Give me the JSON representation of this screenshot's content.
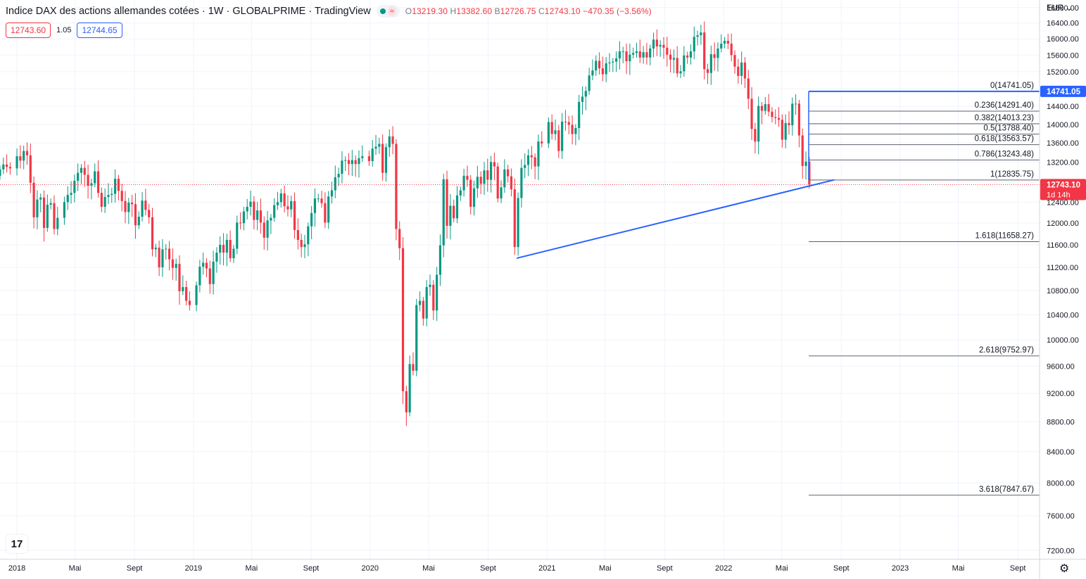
{
  "header": {
    "title": "Indice DAX des actions allemandes cotées · 1W · GLOBALPRIME · TradingView",
    "status_dot_color": "#089981",
    "ohlc": {
      "o_label": "O",
      "o": "13219.30",
      "h_label": "H",
      "h": "13382.60",
      "l_label": "B",
      "l": "12726.75",
      "c_label": "C",
      "c": "12743.10",
      "change": "−470.35 (−3.56%)"
    }
  },
  "quote": {
    "sell": "12743.60",
    "spread": "1.05",
    "buy": "12744.65"
  },
  "currency": "EUR",
  "currency_icon": "chevron-down-icon",
  "colors": {
    "up": "#089981",
    "down": "#f23645",
    "accent": "#2962ff",
    "fib": "#5d606b",
    "grid": "#f0f3fa"
  },
  "chart_data": {
    "type": "candlestick",
    "interval": "1W",
    "y_scale": "log",
    "ylim": [
      7100,
      17000
    ],
    "y_ticks": [
      "16800.00",
      "16400.00",
      "16000.00",
      "15600.00",
      "15200.00",
      "14800.00",
      "14400.00",
      "14000.00",
      "13600.00",
      "13200.00",
      "12800.00",
      "12400.00",
      "12000.00",
      "11600.00",
      "11200.00",
      "10800.00",
      "10400.00",
      "10000.00",
      "9600.00",
      "9200.00",
      "8800.00",
      "8400.00",
      "8000.00",
      "7600.00",
      "7200.00"
    ],
    "x_range": [
      "2017-11-27",
      "2023-10-16"
    ],
    "x_ticks": [
      {
        "date": "2018-01-01",
        "label": "2018"
      },
      {
        "date": "2018-05-01",
        "label": "Mai"
      },
      {
        "date": "2018-09-01",
        "label": "Sept"
      },
      {
        "date": "2019-01-01",
        "label": "2019"
      },
      {
        "date": "2019-05-01",
        "label": "Mai"
      },
      {
        "date": "2019-09-01",
        "label": "Sept"
      },
      {
        "date": "2020-01-01",
        "label": "2020"
      },
      {
        "date": "2020-05-01",
        "label": "Mai"
      },
      {
        "date": "2020-09-01",
        "label": "Sept"
      },
      {
        "date": "2021-01-01",
        "label": "2021"
      },
      {
        "date": "2021-05-01",
        "label": "Mai"
      },
      {
        "date": "2021-09-01",
        "label": "Sept"
      },
      {
        "date": "2022-01-01",
        "label": "2022"
      },
      {
        "date": "2022-05-01",
        "label": "Mai"
      },
      {
        "date": "2022-09-01",
        "label": "Sept"
      },
      {
        "date": "2023-01-01",
        "label": "2023"
      },
      {
        "date": "2023-05-01",
        "label": "Mai"
      },
      {
        "date": "2023-09-01",
        "label": "Sept"
      }
    ],
    "weekly_closes": [
      [
        "2017-11-27",
        13050
      ],
      [
        "2017-12-04",
        13150
      ],
      [
        "2017-12-11",
        13100
      ],
      [
        "2017-12-18",
        13070
      ],
      [
        "2018-01-01",
        13320
      ],
      [
        "2018-01-08",
        13230
      ],
      [
        "2018-01-15",
        13430
      ],
      [
        "2018-01-22",
        13340
      ],
      [
        "2018-01-29",
        12780
      ],
      [
        "2018-02-05",
        12110
      ],
      [
        "2018-02-12",
        12450
      ],
      [
        "2018-02-19",
        12490
      ],
      [
        "2018-02-26",
        11910
      ],
      [
        "2018-03-05",
        12350
      ],
      [
        "2018-03-12",
        12380
      ],
      [
        "2018-03-19",
        11890
      ],
      [
        "2018-03-26",
        12100
      ],
      [
        "2018-04-09",
        12400
      ],
      [
        "2018-04-16",
        12540
      ],
      [
        "2018-04-23",
        12580
      ],
      [
        "2018-04-30",
        12820
      ],
      [
        "2018-05-07",
        12980
      ],
      [
        "2018-05-14",
        13080
      ],
      [
        "2018-05-21",
        12940
      ],
      [
        "2018-05-28",
        12720
      ],
      [
        "2018-06-04",
        12770
      ],
      [
        "2018-06-11",
        13010
      ],
      [
        "2018-06-18",
        12580
      ],
      [
        "2018-06-25",
        12310
      ],
      [
        "2018-07-02",
        12500
      ],
      [
        "2018-07-09",
        12540
      ],
      [
        "2018-07-16",
        12560
      ],
      [
        "2018-07-23",
        12860
      ],
      [
        "2018-07-30",
        12620
      ],
      [
        "2018-08-06",
        12420
      ],
      [
        "2018-08-13",
        12210
      ],
      [
        "2018-08-20",
        12390
      ],
      [
        "2018-08-27",
        12360
      ],
      [
        "2018-09-03",
        11960
      ],
      [
        "2018-09-10",
        12120
      ],
      [
        "2018-09-17",
        12430
      ],
      [
        "2018-09-24",
        12250
      ],
      [
        "2018-10-01",
        12110
      ],
      [
        "2018-10-08",
        11520
      ],
      [
        "2018-10-15",
        11550
      ],
      [
        "2018-10-22",
        11200
      ],
      [
        "2018-10-29",
        11520
      ],
      [
        "2018-11-05",
        11530
      ],
      [
        "2018-11-12",
        11340
      ],
      [
        "2018-11-19",
        11190
      ],
      [
        "2018-11-26",
        11260
      ],
      [
        "2018-12-03",
        10790
      ],
      [
        "2018-12-10",
        10860
      ],
      [
        "2018-12-17",
        10630
      ],
      [
        "2018-12-24",
        10560
      ],
      [
        "2019-01-07",
        10890
      ],
      [
        "2019-01-14",
        11210
      ],
      [
        "2019-01-21",
        11280
      ],
      [
        "2019-01-28",
        11180
      ],
      [
        "2019-02-04",
        10910
      ],
      [
        "2019-02-11",
        11300
      ],
      [
        "2019-02-18",
        11460
      ],
      [
        "2019-02-25",
        11600
      ],
      [
        "2019-03-04",
        11460
      ],
      [
        "2019-03-11",
        11690
      ],
      [
        "2019-03-18",
        11360
      ],
      [
        "2019-03-25",
        11530
      ],
      [
        "2019-04-01",
        12010
      ],
      [
        "2019-04-08",
        11999
      ],
      [
        "2019-04-15",
        12220
      ],
      [
        "2019-04-22",
        12310
      ],
      [
        "2019-04-29",
        12410
      ],
      [
        "2019-05-06",
        12060
      ],
      [
        "2019-05-13",
        12240
      ],
      [
        "2019-05-20",
        12010
      ],
      [
        "2019-05-27",
        11730
      ],
      [
        "2019-06-03",
        12050
      ],
      [
        "2019-06-10",
        12100
      ],
      [
        "2019-06-17",
        12340
      ],
      [
        "2019-06-24",
        12400
      ],
      [
        "2019-07-01",
        12570
      ],
      [
        "2019-07-08",
        12320
      ],
      [
        "2019-07-15",
        12260
      ],
      [
        "2019-07-22",
        12420
      ],
      [
        "2019-07-29",
        11870
      ],
      [
        "2019-08-05",
        11690
      ],
      [
        "2019-08-12",
        11560
      ],
      [
        "2019-08-19",
        11610
      ],
      [
        "2019-08-26",
        11940
      ],
      [
        "2019-09-02",
        12190
      ],
      [
        "2019-09-09",
        12470
      ],
      [
        "2019-09-16",
        12470
      ],
      [
        "2019-09-23",
        12380
      ],
      [
        "2019-09-30",
        12010
      ],
      [
        "2019-10-07",
        12510
      ],
      [
        "2019-10-14",
        12630
      ],
      [
        "2019-10-21",
        12890
      ],
      [
        "2019-10-28",
        12960
      ],
      [
        "2019-11-04",
        13230
      ],
      [
        "2019-11-11",
        13240
      ],
      [
        "2019-11-18",
        13160
      ],
      [
        "2019-11-25",
        13240
      ],
      [
        "2019-12-02",
        13160
      ],
      [
        "2019-12-09",
        13280
      ],
      [
        "2019-12-16",
        13320
      ],
      [
        "2019-12-30",
        13220
      ],
      [
        "2020-01-06",
        13480
      ],
      [
        "2020-01-13",
        13520
      ],
      [
        "2020-01-20",
        13580
      ],
      [
        "2020-01-27",
        12980
      ],
      [
        "2020-02-03",
        13510
      ],
      [
        "2020-02-10",
        13740
      ],
      [
        "2020-02-17",
        13580
      ],
      [
        "2020-02-24",
        11890
      ],
      [
        "2020-03-02",
        11540
      ],
      [
        "2020-03-09",
        9230
      ],
      [
        "2020-03-16",
        8930
      ],
      [
        "2020-03-23",
        9630
      ],
      [
        "2020-03-30",
        9530
      ],
      [
        "2020-04-06",
        10560
      ],
      [
        "2020-04-13",
        10630
      ],
      [
        "2020-04-20",
        10340
      ],
      [
        "2020-04-27",
        10860
      ],
      [
        "2020-05-04",
        10900
      ],
      [
        "2020-05-11",
        10470
      ],
      [
        "2020-05-18",
        11070
      ],
      [
        "2020-05-25",
        11590
      ],
      [
        "2020-06-01",
        12850
      ],
      [
        "2020-06-08",
        11950
      ],
      [
        "2020-06-15",
        12330
      ],
      [
        "2020-06-22",
        12090
      ],
      [
        "2020-06-29",
        12530
      ],
      [
        "2020-07-06",
        12630
      ],
      [
        "2020-07-13",
        12920
      ],
      [
        "2020-07-20",
        12840
      ],
      [
        "2020-07-27",
        12310
      ],
      [
        "2020-08-03",
        12670
      ],
      [
        "2020-08-10",
        12900
      ],
      [
        "2020-08-17",
        12760
      ],
      [
        "2020-08-24",
        13030
      ],
      [
        "2020-08-31",
        12840
      ],
      [
        "2020-09-07",
        13200
      ],
      [
        "2020-09-14",
        13110
      ],
      [
        "2020-09-21",
        12470
      ],
      [
        "2020-09-28",
        12690
      ],
      [
        "2020-10-05",
        13050
      ],
      [
        "2020-10-12",
        12910
      ],
      [
        "2020-10-19",
        12650
      ],
      [
        "2020-10-26",
        11560
      ],
      [
        "2020-11-02",
        12480
      ],
      [
        "2020-11-09",
        13080
      ],
      [
        "2020-11-16",
        13140
      ],
      [
        "2020-11-23",
        13340
      ],
      [
        "2020-11-30",
        13300
      ],
      [
        "2020-12-07",
        13110
      ],
      [
        "2020-12-14",
        13630
      ],
      [
        "2020-12-21",
        13590
      ],
      [
        "2021-01-04",
        14050
      ],
      [
        "2021-01-11",
        13790
      ],
      [
        "2021-01-18",
        13870
      ],
      [
        "2021-01-25",
        13430
      ],
      [
        "2021-02-01",
        14060
      ],
      [
        "2021-02-08",
        14050
      ],
      [
        "2021-02-15",
        13990
      ],
      [
        "2021-02-22",
        13790
      ],
      [
        "2021-03-01",
        13920
      ],
      [
        "2021-03-08",
        14500
      ],
      [
        "2021-03-15",
        14620
      ],
      [
        "2021-03-22",
        14750
      ],
      [
        "2021-03-29",
        15110
      ],
      [
        "2021-04-05",
        15230
      ],
      [
        "2021-04-12",
        15460
      ],
      [
        "2021-04-19",
        15280
      ],
      [
        "2021-04-26",
        15140
      ],
      [
        "2021-05-03",
        15400
      ],
      [
        "2021-05-10",
        15420
      ],
      [
        "2021-05-17",
        15440
      ],
      [
        "2021-05-24",
        15520
      ],
      [
        "2021-05-31",
        15690
      ],
      [
        "2021-06-07",
        15690
      ],
      [
        "2021-06-14",
        15450
      ],
      [
        "2021-06-21",
        15610
      ],
      [
        "2021-06-28",
        15650
      ],
      [
        "2021-07-05",
        15690
      ],
      [
        "2021-07-12",
        15540
      ],
      [
        "2021-07-19",
        15670
      ],
      [
        "2021-07-26",
        15540
      ],
      [
        "2021-08-02",
        15760
      ],
      [
        "2021-08-09",
        15980
      ],
      [
        "2021-08-16",
        15810
      ],
      [
        "2021-08-23",
        15850
      ],
      [
        "2021-08-30",
        15780
      ],
      [
        "2021-09-06",
        15610
      ],
      [
        "2021-09-13",
        15490
      ],
      [
        "2021-09-20",
        15530
      ],
      [
        "2021-09-27",
        15160
      ],
      [
        "2021-10-04",
        15210
      ],
      [
        "2021-10-11",
        15590
      ],
      [
        "2021-10-18",
        15540
      ],
      [
        "2021-10-25",
        15690
      ],
      [
        "2021-11-01",
        16050
      ],
      [
        "2021-11-08",
        16090
      ],
      [
        "2021-11-15",
        16160
      ],
      [
        "2021-11-22",
        15260
      ],
      [
        "2021-11-29",
        15170
      ],
      [
        "2021-12-06",
        15620
      ],
      [
        "2021-12-13",
        15530
      ],
      [
        "2021-12-20",
        15760
      ],
      [
        "2021-12-27",
        15880
      ],
      [
        "2022-01-03",
        15950
      ],
      [
        "2022-01-10",
        15880
      ],
      [
        "2022-01-17",
        15600
      ],
      [
        "2022-01-24",
        15320
      ],
      [
        "2022-01-31",
        15100
      ],
      [
        "2022-02-07",
        15420
      ],
      [
        "2022-02-14",
        15040
      ],
      [
        "2022-02-21",
        14570
      ],
      [
        "2022-02-28",
        13900
      ],
      [
        "2022-03-07",
        13630
      ],
      [
        "2022-03-14",
        14410
      ],
      [
        "2022-03-21",
        14300
      ],
      [
        "2022-03-28",
        14450
      ],
      [
        "2022-04-04",
        14280
      ],
      [
        "2022-04-11",
        14160
      ],
      [
        "2022-04-18",
        14140
      ],
      [
        "2022-04-25",
        14100
      ],
      [
        "2022-05-02",
        13670
      ],
      [
        "2022-05-09",
        14030
      ],
      [
        "2022-05-16",
        13980
      ],
      [
        "2022-05-23",
        14460
      ],
      [
        "2022-05-30",
        14460
      ],
      [
        "2022-06-06",
        13760
      ],
      [
        "2022-06-13",
        13120
      ],
      [
        "2022-06-20",
        13210
      ],
      [
        "2022-06-27",
        12743
      ]
    ],
    "fibonacci": [
      {
        "label": "0(14741.05)",
        "value": 14741.05
      },
      {
        "label": "0.236(14291.40)",
        "value": 14291.4
      },
      {
        "label": "0.382(14013.23)",
        "value": 14013.23
      },
      {
        "label": "0.5(13788.40)",
        "value": 13788.4
      },
      {
        "label": "0.618(13563.57)",
        "value": 13563.57
      },
      {
        "label": "0.786(13243.48)",
        "value": 13243.48
      },
      {
        "label": "1(12835.75)",
        "value": 12835.75
      },
      {
        "label": "1.618(11658.27)",
        "value": 11658.27
      },
      {
        "label": "2.618(9752.97)",
        "value": 9752.97
      },
      {
        "label": "3.618(7847.67)",
        "value": 7847.67
      }
    ],
    "trendline": {
      "points": [
        [
          "2020-10-30",
          11360
        ],
        [
          "2022-08-18",
          12840
        ]
      ]
    },
    "price_badges": [
      {
        "value": 14741.05,
        "label": "14741.05",
        "color": "#2962ff"
      },
      {
        "value": 12743.1,
        "label": "12743.10",
        "sublabel": "1d 14h",
        "color": "#f23645"
      }
    ],
    "last_price": 12743.1
  }
}
